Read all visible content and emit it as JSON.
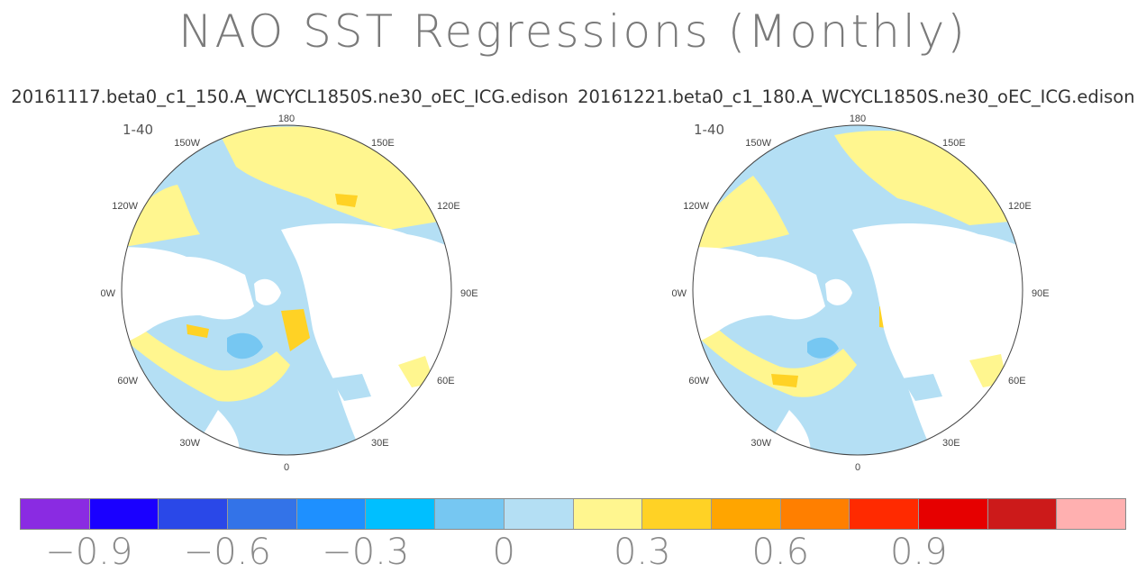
{
  "title": "NAO SST Regressions (Monthly)",
  "panels": [
    {
      "run": "20161117.beta0_c1_150.A_WCYCL1850S.ne30_oEC_ICG.edison",
      "period": "1-40",
      "lon_labels": [
        "180",
        "150E",
        "120E",
        "90E",
        "60E",
        "30E",
        "0",
        "30W",
        "60W",
        "90W",
        "120W",
        "150W"
      ]
    },
    {
      "run": "20161221.beta0_c1_180.A_WCYCL1850S.ne30_oEC_ICG.edison",
      "period": "1-40",
      "lon_labels": [
        "180",
        "150E",
        "120E",
        "90E",
        "60E",
        "30E",
        "0",
        "30W",
        "60W",
        "90W",
        "120W",
        "150W"
      ]
    }
  ],
  "colorbar": {
    "colors": [
      "#8a2be2",
      "#1a00ff",
      "#2a48e8",
      "#3373e8",
      "#1e90ff",
      "#00bfff",
      "#76c7f2",
      "#b4dff4",
      "#fff68f",
      "#ffd225",
      "#ffa500",
      "#ff7f00",
      "#ff2a00",
      "#e60000",
      "#cc1a1a",
      "#ffb0b0"
    ],
    "labels": [
      "−0.9",
      "−0.6",
      "−0.3",
      "0",
      "0.3",
      "0.6",
      "0.9"
    ]
  },
  "map_colors": {
    "land": "#ffffff",
    "negative_weak": "#b4dff4",
    "negative_mid": "#76c7f2",
    "positive_weak": "#fff68f",
    "positive_mid": "#ffd225",
    "positive_strong": "#ffa500",
    "coast": "#666666"
  }
}
